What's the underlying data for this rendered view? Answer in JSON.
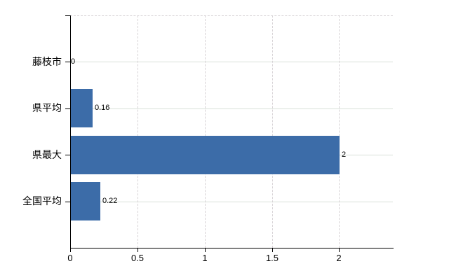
{
  "chart_data": {
    "type": "bar",
    "orientation": "horizontal",
    "title": "",
    "xlabel": "",
    "ylabel": "",
    "categories": [
      "藤枝市",
      "県平均",
      "県最大",
      "全国平均"
    ],
    "values": [
      0,
      0.16,
      2,
      0.22
    ],
    "value_labels": [
      "0",
      "0.16",
      "2",
      "0.22"
    ],
    "x_ticks": [
      0,
      0.5,
      1,
      1.5,
      2
    ],
    "x_tick_labels": [
      "0",
      "0.5",
      "1",
      "1.5",
      "2"
    ],
    "xlim": [
      0,
      2.4
    ],
    "grid": true,
    "legend": false,
    "colors": {
      "bar": "#3c6ca8",
      "axis": "#000000",
      "h_gridline": "#d9e0d8",
      "v_gridline": "#d6d2d5",
      "label_text": "#000000",
      "background": "#ffffff"
    }
  }
}
